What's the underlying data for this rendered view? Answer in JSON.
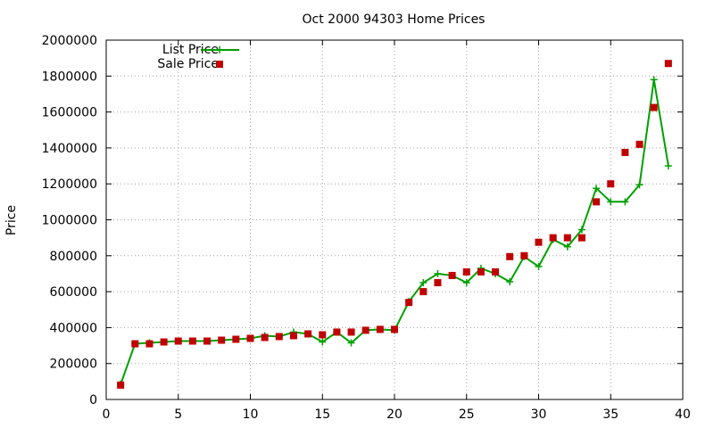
{
  "chart_data": {
    "type": "line",
    "title": "Oct 2000 94303 Home Prices",
    "xlabel": "",
    "ylabel": "Price",
    "xlim": [
      0,
      40
    ],
    "ylim": [
      0,
      2000000
    ],
    "x_ticks": [
      "0",
      "5",
      "10",
      "15",
      "20",
      "25",
      "30",
      "35",
      "40"
    ],
    "y_ticks": [
      "0",
      "200000",
      "400000",
      "600000",
      "800000",
      "1000000",
      "1200000",
      "1400000",
      "1600000",
      "1800000",
      "2000000"
    ],
    "grid": true,
    "legend_position": "top-left",
    "series": [
      {
        "name": "List Price",
        "style": "line-points",
        "color": "#00a000",
        "x": [
          1,
          2,
          3,
          4,
          5,
          6,
          7,
          8,
          9,
          10,
          11,
          12,
          13,
          14,
          15,
          16,
          17,
          18,
          19,
          20,
          21,
          22,
          23,
          24,
          25,
          26,
          27,
          28,
          29,
          30,
          31,
          32,
          33,
          34,
          35,
          36,
          37,
          38,
          39
        ],
        "y": [
          85000,
          310000,
          315000,
          320000,
          325000,
          325000,
          325000,
          330000,
          335000,
          340000,
          355000,
          350000,
          375000,
          365000,
          320000,
          375000,
          315000,
          385000,
          390000,
          385000,
          545000,
          650000,
          700000,
          690000,
          650000,
          730000,
          700000,
          655000,
          795000,
          740000,
          890000,
          850000,
          945000,
          1175000,
          1100000,
          1100000,
          1195000,
          1780000,
          1300000
        ]
      },
      {
        "name": "Sale Price",
        "style": "points",
        "color": "#c00000",
        "x": [
          1,
          2,
          3,
          4,
          5,
          6,
          7,
          8,
          9,
          10,
          11,
          12,
          13,
          14,
          15,
          16,
          17,
          18,
          19,
          20,
          21,
          22,
          23,
          24,
          25,
          26,
          27,
          28,
          29,
          30,
          31,
          32,
          33,
          34,
          35,
          36,
          37,
          38,
          39
        ],
        "y": [
          80000,
          310000,
          310000,
          320000,
          325000,
          325000,
          325000,
          330000,
          335000,
          340000,
          345000,
          350000,
          355000,
          365000,
          360000,
          375000,
          375000,
          385000,
          390000,
          390000,
          540000,
          600000,
          650000,
          690000,
          710000,
          710000,
          710000,
          795000,
          800000,
          875000,
          900000,
          900000,
          900000,
          1100000,
          1200000,
          1375000,
          1420000,
          1625000,
          1870000
        ]
      }
    ]
  }
}
